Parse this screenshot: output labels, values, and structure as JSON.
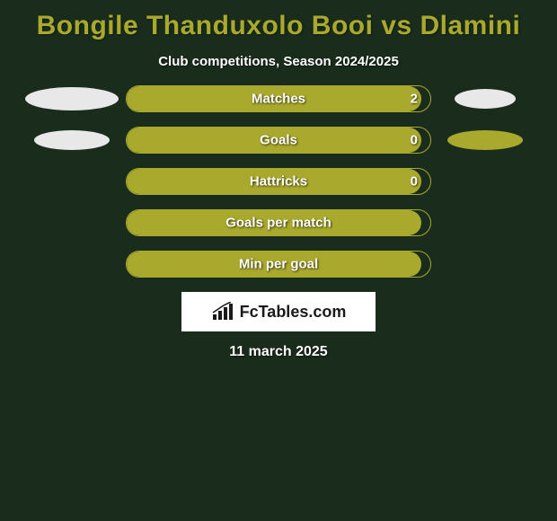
{
  "title": "Bongile Thanduxolo Booi vs Dlamini",
  "subtitle": "Club competitions, Season 2024/2025",
  "colors": {
    "background": "#1a2d1c",
    "accent": "#a9a92e",
    "bar_fill": "#a9a92e",
    "bar_border": "#a9a92e",
    "text_light": "#ffffff",
    "ellipse_light": "#e8e8e8",
    "ellipse_accent": "#a9a92e"
  },
  "rows": [
    {
      "label": "Matches",
      "value_right": "2",
      "fill_pct": 97,
      "left_ellipse": {
        "w": 104,
        "h": 26,
        "color": "#e8e8e8"
      },
      "right_ellipse": {
        "w": 68,
        "h": 22,
        "color": "#e8e8e8"
      }
    },
    {
      "label": "Goals",
      "value_right": "0",
      "fill_pct": 97,
      "left_ellipse": {
        "w": 84,
        "h": 22,
        "color": "#e8e8e8"
      },
      "right_ellipse": {
        "w": 84,
        "h": 22,
        "color": "#a9a92e"
      }
    },
    {
      "label": "Hattricks",
      "value_right": "0",
      "fill_pct": 97,
      "left_ellipse": null,
      "right_ellipse": null
    },
    {
      "label": "Goals per match",
      "value_right": "",
      "fill_pct": 97,
      "left_ellipse": null,
      "right_ellipse": null
    },
    {
      "label": "Min per goal",
      "value_right": "",
      "fill_pct": 97,
      "left_ellipse": null,
      "right_ellipse": null
    }
  ],
  "logo": {
    "text": "FcTables.com",
    "icon_color": "#1a1a1a"
  },
  "date": "11 march 2025"
}
